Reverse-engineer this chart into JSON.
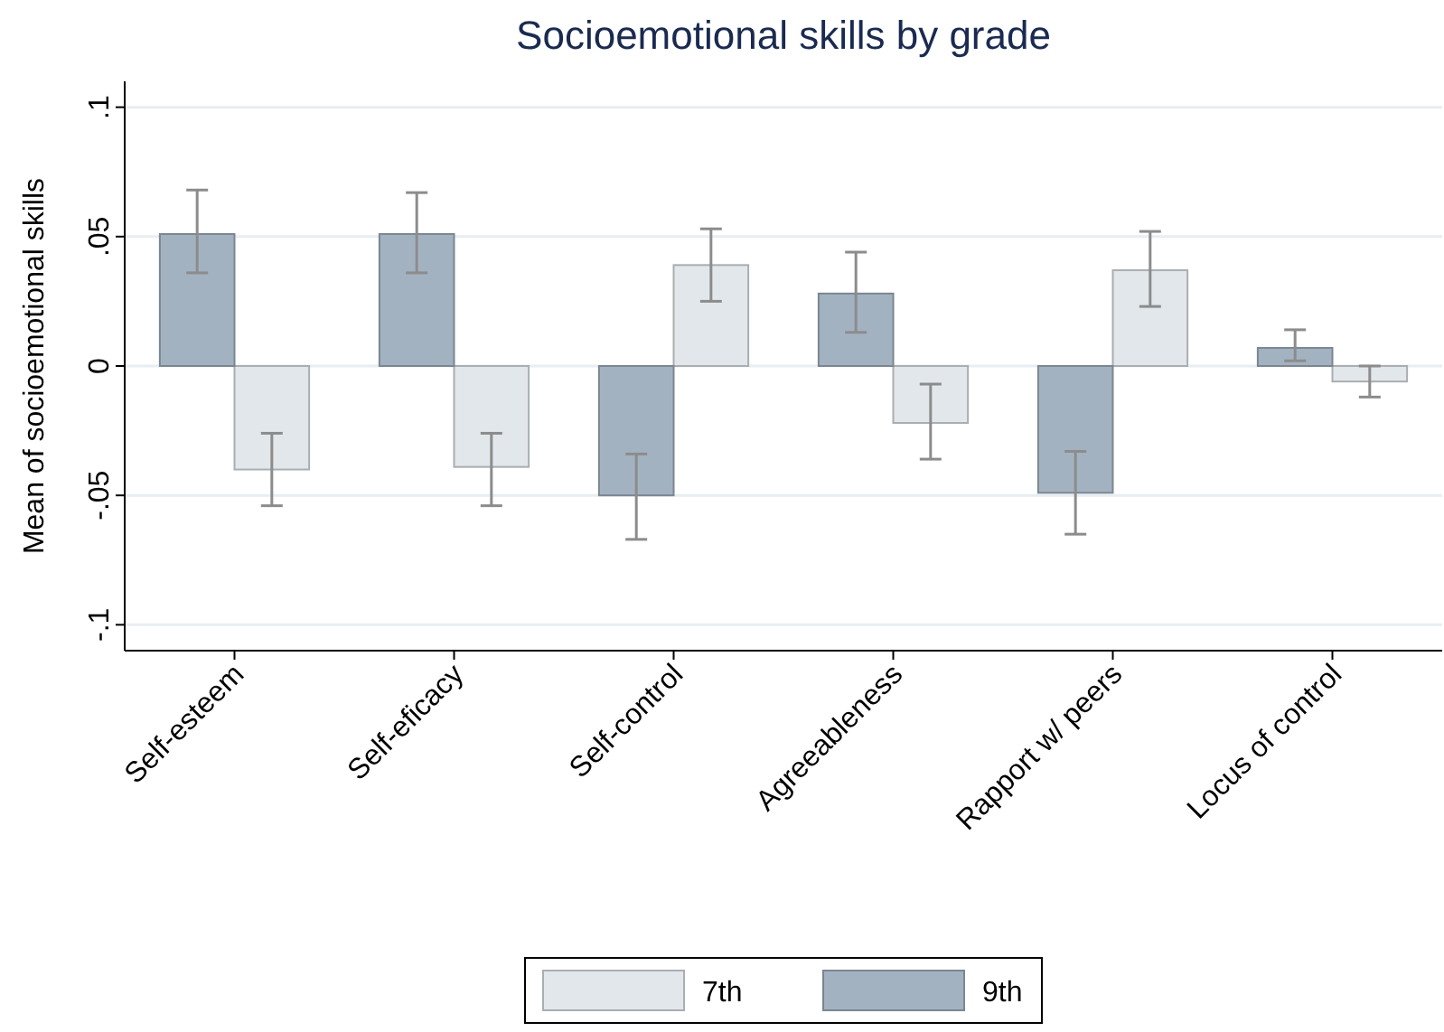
{
  "chart_data": {
    "type": "bar",
    "title": "Socioemotional skills by grade",
    "ylabel": "Mean of socioemotional skills",
    "categories": [
      "Self-esteem",
      "Self-eficacy",
      "Self-control",
      "Agreeableness",
      "Rapport w/ peers",
      "Locus of control"
    ],
    "series": [
      {
        "name": "7th",
        "color": "#e2e7eb",
        "values": [
          -0.04,
          -0.039,
          0.039,
          -0.022,
          0.037,
          -0.006
        ],
        "errors": [
          [
            -0.054,
            -0.026
          ],
          [
            -0.054,
            -0.026
          ],
          [
            0.025,
            0.053
          ],
          [
            -0.036,
            -0.007
          ],
          [
            0.023,
            0.052
          ],
          [
            -0.012,
            0.0
          ]
        ]
      },
      {
        "name": "9th",
        "color": "#a3b2c1",
        "values": [
          0.051,
          0.051,
          -0.05,
          0.028,
          -0.049,
          0.007
        ],
        "errors": [
          [
            0.036,
            0.068
          ],
          [
            0.036,
            0.067
          ],
          [
            -0.067,
            -0.034
          ],
          [
            0.013,
            0.044
          ],
          [
            -0.065,
            -0.033
          ],
          [
            0.002,
            0.014
          ]
        ]
      }
    ],
    "ylim": [
      -0.11,
      0.11
    ],
    "yticks": [
      {
        "value": -0.1,
        "label": "-.1"
      },
      {
        "value": -0.05,
        "label": "-.05"
      },
      0,
      {
        "value": 0.05,
        "label": ".05"
      },
      {
        "value": 0.1,
        "label": ".1"
      }
    ],
    "grid": "y",
    "legend": "bottom"
  }
}
